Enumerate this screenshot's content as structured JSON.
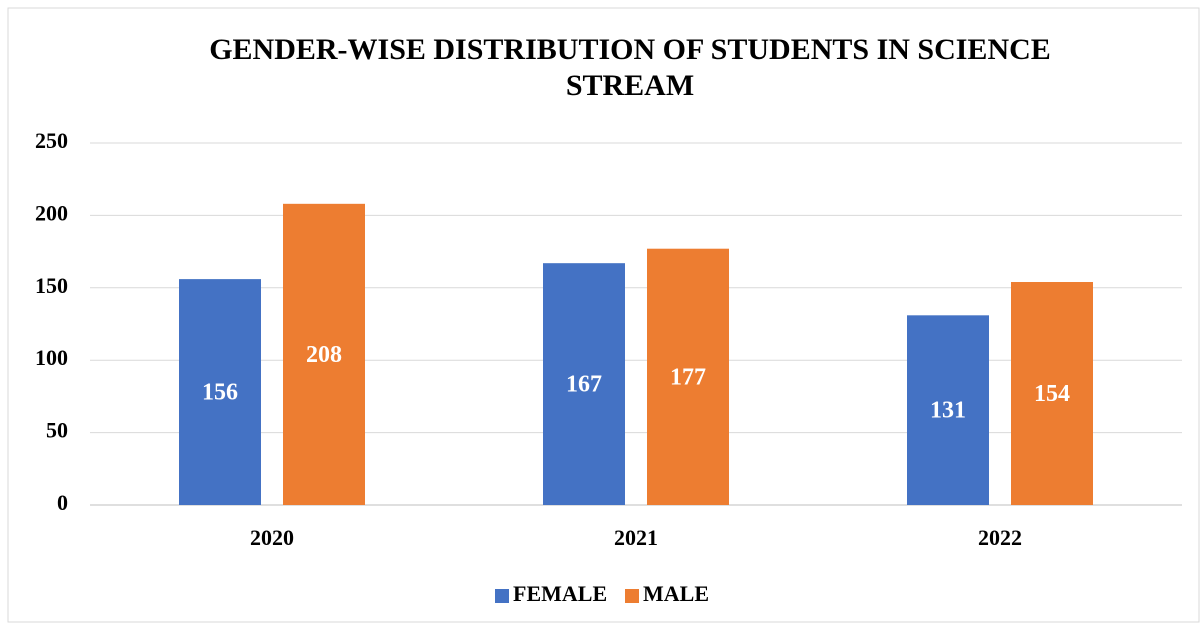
{
  "chart_data": {
    "type": "bar",
    "title": "GENDER-WISE DISTRIBUTION OF STUDENTS IN SCIENCE STREAM",
    "categories": [
      "2020",
      "2021",
      "2022"
    ],
    "series": [
      {
        "name": "FEMALE",
        "color": "#4472c4",
        "values": [
          156,
          167,
          131
        ]
      },
      {
        "name": "MALE",
        "color": "#ed7d31",
        "values": [
          208,
          177,
          154
        ]
      }
    ],
    "ylim": [
      0,
      250
    ],
    "yticks": [
      0,
      50,
      100,
      150,
      200,
      250
    ],
    "grid": true,
    "legend": "bottom"
  }
}
